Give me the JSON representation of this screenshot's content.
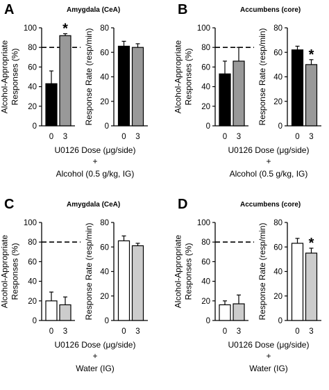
{
  "colors": {
    "saline": "#000000",
    "drug": "#999999",
    "water_vehicle": "#ffffff",
    "water_drug": "#cccccc"
  },
  "chart_data": [
    {
      "panel": "A",
      "title": "Amygdala (CeA)",
      "type": "bar",
      "x_title": "U0126 Dose (μg/side)",
      "plus": "+",
      "treatment": "Alcohol (0.5 g/kg, IG)",
      "fills": [
        "#000000",
        "#999999"
      ],
      "subcharts": [
        {
          "ylabel": [
            "Alcohol-Appropriate",
            "Responses (%)"
          ],
          "ylim": [
            0,
            100
          ],
          "yticks": [
            0,
            20,
            40,
            60,
            80,
            100
          ],
          "categories": [
            "0",
            "3"
          ],
          "values": [
            43,
            92
          ],
          "errors": [
            13,
            2
          ],
          "reference_line": 80,
          "significance": [
            "",
            "*"
          ]
        },
        {
          "ylabel": [
            "Response Rate (resp/min)"
          ],
          "ylim": [
            0,
            80
          ],
          "yticks": [
            0,
            20,
            40,
            60,
            80
          ],
          "categories": [
            "0",
            "3"
          ],
          "values": [
            65,
            64
          ],
          "errors": [
            4,
            3
          ],
          "significance": [
            "",
            ""
          ]
        }
      ]
    },
    {
      "panel": "B",
      "title": "Accumbens (core)",
      "type": "bar",
      "x_title": "U0126 Dose (μg/side)",
      "plus": "+",
      "treatment": "Alcohol (0.5 g/kg, IG)",
      "fills": [
        "#000000",
        "#999999"
      ],
      "subcharts": [
        {
          "ylabel": [
            "Alcohol-Appropriate",
            "Responses (%)"
          ],
          "ylim": [
            0,
            100
          ],
          "yticks": [
            0,
            20,
            40,
            60,
            80,
            100
          ],
          "categories": [
            "0",
            "3"
          ],
          "values": [
            53,
            66
          ],
          "errors": [
            13,
            14
          ],
          "reference_line": 80,
          "significance": [
            "",
            ""
          ]
        },
        {
          "ylabel": [
            "Response Rate (resp/min)"
          ],
          "ylim": [
            0,
            80
          ],
          "yticks": [
            0,
            20,
            40,
            60,
            80
          ],
          "categories": [
            "0",
            "3"
          ],
          "values": [
            62,
            50
          ],
          "errors": [
            3,
            4
          ],
          "significance": [
            "",
            "*"
          ]
        }
      ]
    },
    {
      "panel": "C",
      "title": "Amygdala (CeA)",
      "type": "bar",
      "x_title": "U0126 Dose (μg/side)",
      "plus": "+",
      "treatment": "Water (IG)",
      "fills": [
        "#ffffff",
        "#cccccc"
      ],
      "subcharts": [
        {
          "ylabel": [
            "Alcohol-Appropriate",
            "Responses (%)"
          ],
          "ylim": [
            0,
            100
          ],
          "yticks": [
            0,
            20,
            40,
            60,
            80,
            100
          ],
          "categories": [
            "0",
            "3"
          ],
          "values": [
            20,
            16
          ],
          "errors": [
            9,
            8
          ],
          "reference_line": 80,
          "significance": [
            "",
            ""
          ]
        },
        {
          "ylabel": [
            "Response Rate (resp/min)"
          ],
          "ylim": [
            0,
            80
          ],
          "yticks": [
            0,
            20,
            40,
            60,
            80
          ],
          "categories": [
            "0",
            "3"
          ],
          "values": [
            65,
            61
          ],
          "errors": [
            4,
            2
          ],
          "significance": [
            "",
            ""
          ]
        }
      ]
    },
    {
      "panel": "D",
      "title": "Accumbens (core)",
      "type": "bar",
      "x_title": "U0126 Dose (μg/side)",
      "plus": "+",
      "treatment": "Water (IG)",
      "fills": [
        "#ffffff",
        "#cccccc"
      ],
      "subcharts": [
        {
          "ylabel": [
            "Alcohol-Appropriate",
            "Responses (%)"
          ],
          "ylim": [
            0,
            100
          ],
          "yticks": [
            0,
            20,
            40,
            60,
            80,
            100
          ],
          "categories": [
            "0",
            "3"
          ],
          "values": [
            16,
            17
          ],
          "errors": [
            4,
            9
          ],
          "reference_line": 80,
          "significance": [
            "",
            ""
          ]
        },
        {
          "ylabel": [
            "Response Rate (resp/min)"
          ],
          "ylim": [
            0,
            80
          ],
          "yticks": [
            0,
            20,
            40,
            60,
            80
          ],
          "categories": [
            "0",
            "3"
          ],
          "values": [
            63,
            55
          ],
          "errors": [
            4,
            4
          ],
          "significance": [
            "",
            "*"
          ]
        }
      ]
    }
  ]
}
